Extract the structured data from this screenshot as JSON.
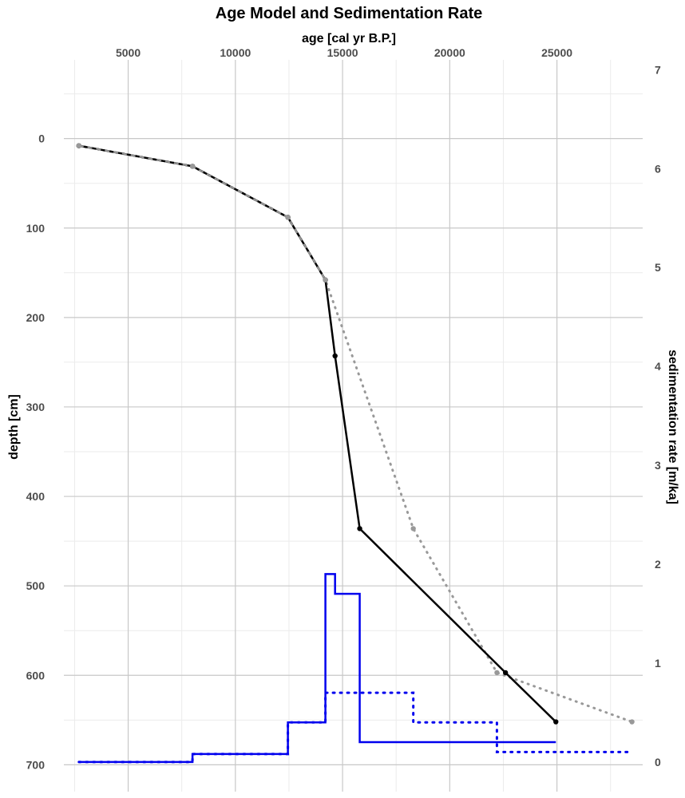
{
  "chart_data": {
    "type": "line",
    "title": "Age Model and Sedimentation Rate",
    "x_top_label": "age [cal yr B.P.]",
    "y_left_label": "depth [cm]",
    "y_right_label": "sedimentation rate [m/ka]",
    "age_ticks": [
      "5000",
      "10000",
      "15000",
      "20000",
      "25000"
    ],
    "depth_ticks": [
      "0",
      "100",
      "200",
      "300",
      "400",
      "500",
      "600",
      "700"
    ],
    "rate_ticks": [
      "0",
      "1",
      "2",
      "3",
      "4",
      "5",
      "6",
      "7"
    ],
    "xlim": [
      2000,
      29000
    ],
    "depth_lim": [
      -88,
      730
    ],
    "rate_lim": [
      -0.3,
      7.1
    ],
    "grid": true,
    "legend": "none",
    "colors": {
      "age_model": "#000000",
      "age_model_alt": "#999999",
      "sed_rate": "#0000ee",
      "grid_major": "#c8c8c8",
      "grid_minor": "#ebebeb"
    },
    "series": [
      {
        "style": "solid-black-with-points",
        "points": [
          [
            2700,
            8
          ],
          [
            8000,
            31
          ],
          [
            12450,
            88
          ],
          [
            14200,
            158
          ],
          [
            14650,
            243
          ],
          [
            15800,
            436
          ],
          [
            22600,
            597
          ],
          [
            24950,
            652
          ]
        ]
      },
      {
        "style": "dotted-grey-with-points",
        "points": [
          [
            2700,
            8
          ],
          [
            8000,
            31
          ],
          [
            12450,
            88
          ],
          [
            14200,
            158
          ],
          [
            18300,
            436
          ],
          [
            22200,
            597
          ],
          [
            28500,
            652
          ]
        ]
      },
      {
        "style": "dashed-grey-segment",
        "points": [
          [
            2700,
            8
          ],
          [
            8000,
            31
          ],
          [
            12450,
            88
          ],
          [
            14200,
            158
          ]
        ]
      },
      {
        "style": "step-solid-blue",
        "steps": [
          [
            2700,
            0
          ],
          [
            8000,
            0.08
          ],
          [
            12450,
            0.4
          ],
          [
            14200,
            1.9
          ],
          [
            14650,
            1.7
          ],
          [
            15800,
            0.2
          ],
          [
            24950,
            0.2
          ]
        ]
      },
      {
        "style": "step-dotted-blue",
        "steps": [
          [
            2700,
            0
          ],
          [
            8000,
            0.08
          ],
          [
            12450,
            0.4
          ],
          [
            14200,
            0.7
          ],
          [
            18300,
            0.4
          ],
          [
            22200,
            0.1
          ],
          [
            28500,
            0.1
          ]
        ]
      }
    ]
  }
}
